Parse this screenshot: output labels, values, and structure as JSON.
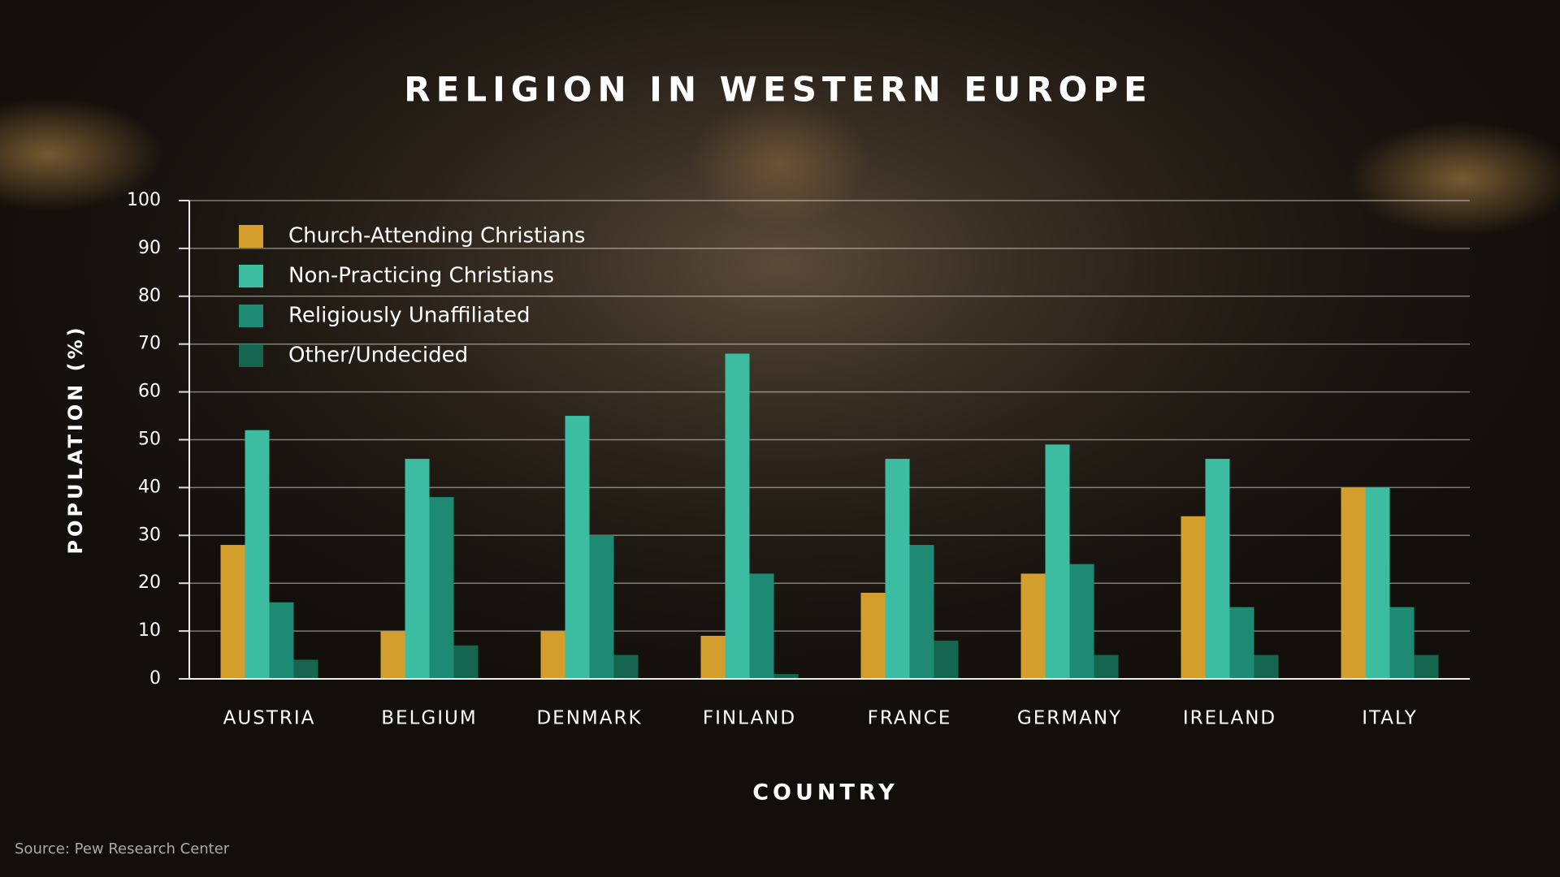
{
  "chart_data": {
    "type": "bar",
    "title": "RELIGION IN WESTERN EUROPE",
    "x_label": "COUNTRY",
    "y_label": "POPULATION (%)",
    "source": "Source: Pew Research Center",
    "categories": [
      "AUSTRIA",
      "BELGIUM",
      "DENMARK",
      "FINLAND",
      "FRANCE",
      "GERMANY",
      "IRELAND",
      "ITALY"
    ],
    "series": [
      {
        "name": "Church-Attending Christians",
        "color": "#d39e2b",
        "values": [
          28,
          10,
          10,
          9,
          18,
          22,
          34,
          40
        ]
      },
      {
        "name": "Non-Practicing Christians",
        "color": "#3cbca1",
        "values": [
          52,
          46,
          55,
          68,
          46,
          49,
          46,
          40
        ]
      },
      {
        "name": "Religiously Unaffiliated",
        "color": "#1f8a73",
        "values": [
          16,
          38,
          30,
          22,
          28,
          24,
          15,
          15
        ]
      },
      {
        "name": "Other/Undecided",
        "color": "#16664f",
        "values": [
          4,
          7,
          5,
          1,
          8,
          5,
          5,
          5
        ]
      }
    ],
    "ylim": [
      0,
      100
    ],
    "yticks": [
      0,
      10,
      20,
      30,
      40,
      50,
      60,
      70,
      80,
      90,
      100
    ],
    "grid": true,
    "legend": "top-left"
  }
}
